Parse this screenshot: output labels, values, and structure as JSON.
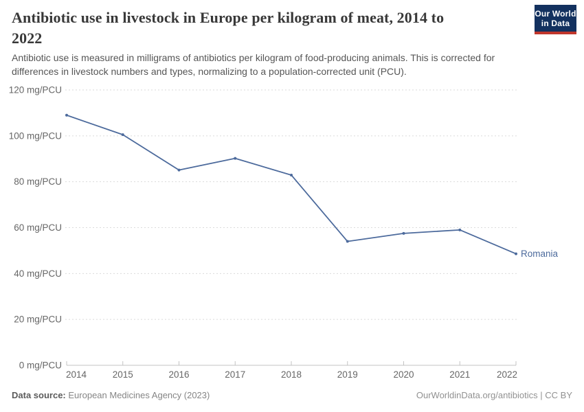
{
  "header": {
    "title_lines": [
      "Antibiotic use in livestock in Europe per kilogram of meat, 2014 to",
      "2022"
    ],
    "subtitle_lines": [
      "Antibiotic use is measured in milligrams of antibiotics per kilogram of food-producing animals. This is corrected for",
      "differences in livestock numbers and types, normalizing to a population-corrected unit (PCU)."
    ],
    "logo": {
      "line1": "Our World",
      "line2": "in Data"
    }
  },
  "chart_data": {
    "type": "line",
    "title": "Antibiotic use in livestock in Europe per kilogram of meat, 2014 to 2022",
    "x": [
      2014,
      2015,
      2016,
      2017,
      2018,
      2019,
      2020,
      2021,
      2022
    ],
    "x_labels": [
      "2014",
      "2015",
      "2016",
      "2017",
      "2018",
      "2019",
      "2020",
      "2021",
      "2022"
    ],
    "series": [
      {
        "name": "Romania",
        "values": [
          109,
          100.5,
          85.1,
          90.2,
          82.9,
          54,
          57.5,
          59,
          48.6
        ],
        "color": "#4C6A9C"
      }
    ],
    "unit": "mg/PCU",
    "ylabel": "",
    "xlabel": "",
    "ylim": [
      0,
      120
    ],
    "yticks": [
      0,
      20,
      40,
      60,
      80,
      100,
      120
    ],
    "ytick_labels": [
      "0 mg/PCU",
      "20 mg/PCU",
      "40 mg/PCU",
      "60 mg/PCU",
      "80 mg/PCU",
      "100 mg/PCU",
      "120 mg/PCU"
    ],
    "grid": "horizontal-dashed",
    "legend": "line-end-label"
  },
  "footer": {
    "source_label": "Data source:",
    "source_value": "European Medicines Agency (2023)",
    "credit": "OurWorldinData.org/antibiotics | CC BY"
  },
  "colors": {
    "line": "#4C6A9C",
    "series_label": "#4C6A9C",
    "grid": "#dadada",
    "axis": "#c3c3c3",
    "tick_text": "#666666",
    "title_text": "#383838",
    "subtitle_text": "#555555",
    "footer_text": "#858585",
    "logo_bg": "#13315f",
    "logo_accent": "#c0362c"
  }
}
